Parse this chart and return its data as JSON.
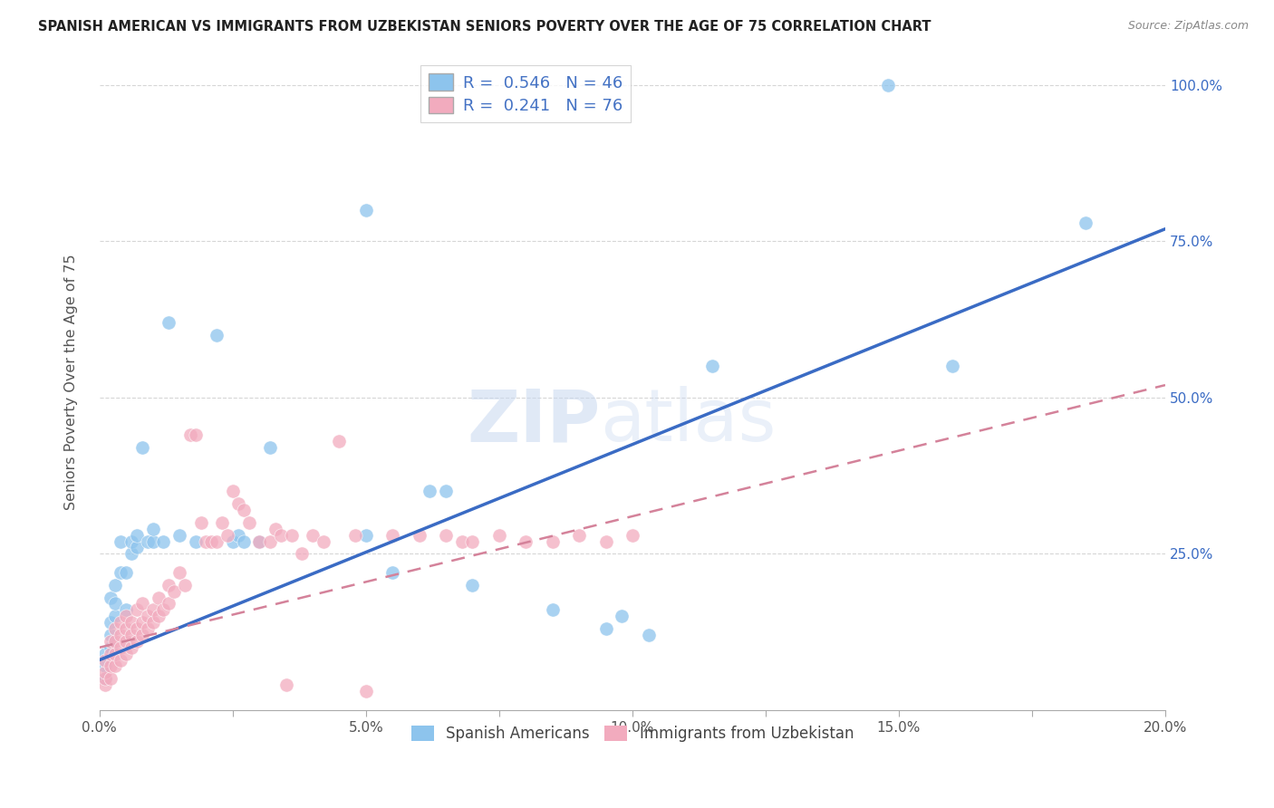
{
  "title": "SPANISH AMERICAN VS IMMIGRANTS FROM UZBEKISTAN SENIORS POVERTY OVER THE AGE OF 75 CORRELATION CHART",
  "source": "Source: ZipAtlas.com",
  "ylabel": "Seniors Poverty Over the Age of 75",
  "xlim": [
    0.0,
    0.2
  ],
  "ylim": [
    0.0,
    1.05
  ],
  "xtick_labels": [
    "0.0%",
    "",
    "5.0%",
    "",
    "10.0%",
    "",
    "15.0%",
    "",
    "20.0%"
  ],
  "xtick_vals": [
    0.0,
    0.025,
    0.05,
    0.075,
    0.1,
    0.125,
    0.15,
    0.175,
    0.2
  ],
  "ytick_labels": [
    "25.0%",
    "50.0%",
    "75.0%",
    "100.0%"
  ],
  "ytick_vals": [
    0.25,
    0.5,
    0.75,
    1.0
  ],
  "watermark_zip": "ZIP",
  "watermark_atlas": "atlas",
  "blue_R": 0.546,
  "blue_N": 46,
  "pink_R": 0.241,
  "pink_N": 76,
  "blue_color": "#8DC4ED",
  "pink_color": "#F2ABBE",
  "blue_line_color": "#3A6BC4",
  "pink_line_color": "#D4829A",
  "legend_text_color": "#4472C4",
  "blue_line_x": [
    0.0,
    0.2
  ],
  "blue_line_y": [
    0.08,
    0.77
  ],
  "pink_line_x": [
    0.0,
    0.2
  ],
  "pink_line_y": [
    0.1,
    0.52
  ],
  "blue_scatter_x": [
    0.001,
    0.001,
    0.001,
    0.002,
    0.002,
    0.002,
    0.002,
    0.003,
    0.003,
    0.003,
    0.004,
    0.004,
    0.005,
    0.005,
    0.006,
    0.006,
    0.007,
    0.007,
    0.008,
    0.009,
    0.01,
    0.01,
    0.012,
    0.013,
    0.015,
    0.018,
    0.022,
    0.025,
    0.026,
    0.027,
    0.03,
    0.032,
    0.05,
    0.055,
    0.065,
    0.07,
    0.085,
    0.095,
    0.098,
    0.103,
    0.115,
    0.148,
    0.16,
    0.185,
    0.05,
    0.062
  ],
  "blue_scatter_y": [
    0.05,
    0.07,
    0.09,
    0.1,
    0.12,
    0.14,
    0.18,
    0.15,
    0.17,
    0.2,
    0.22,
    0.27,
    0.16,
    0.22,
    0.25,
    0.27,
    0.26,
    0.28,
    0.42,
    0.27,
    0.27,
    0.29,
    0.27,
    0.62,
    0.28,
    0.27,
    0.6,
    0.27,
    0.28,
    0.27,
    0.27,
    0.42,
    0.28,
    0.22,
    0.35,
    0.2,
    0.16,
    0.13,
    0.15,
    0.12,
    0.55,
    1.0,
    0.55,
    0.78,
    0.8,
    0.35
  ],
  "pink_scatter_x": [
    0.001,
    0.001,
    0.001,
    0.001,
    0.002,
    0.002,
    0.002,
    0.002,
    0.003,
    0.003,
    0.003,
    0.003,
    0.004,
    0.004,
    0.004,
    0.004,
    0.005,
    0.005,
    0.005,
    0.005,
    0.006,
    0.006,
    0.006,
    0.007,
    0.007,
    0.007,
    0.008,
    0.008,
    0.008,
    0.009,
    0.009,
    0.01,
    0.01,
    0.011,
    0.011,
    0.012,
    0.013,
    0.013,
    0.014,
    0.015,
    0.016,
    0.017,
    0.018,
    0.019,
    0.02,
    0.021,
    0.022,
    0.023,
    0.024,
    0.025,
    0.026,
    0.027,
    0.028,
    0.03,
    0.032,
    0.033,
    0.034,
    0.036,
    0.038,
    0.04,
    0.042,
    0.045,
    0.048,
    0.05,
    0.055,
    0.06,
    0.065,
    0.068,
    0.07,
    0.075,
    0.08,
    0.085,
    0.09,
    0.095,
    0.1,
    0.035
  ],
  "pink_scatter_y": [
    0.04,
    0.05,
    0.06,
    0.08,
    0.05,
    0.07,
    0.09,
    0.11,
    0.07,
    0.09,
    0.11,
    0.13,
    0.08,
    0.1,
    0.12,
    0.14,
    0.09,
    0.11,
    0.13,
    0.15,
    0.1,
    0.12,
    0.14,
    0.11,
    0.13,
    0.16,
    0.12,
    0.14,
    0.17,
    0.13,
    0.15,
    0.14,
    0.16,
    0.15,
    0.18,
    0.16,
    0.17,
    0.2,
    0.19,
    0.22,
    0.2,
    0.44,
    0.44,
    0.3,
    0.27,
    0.27,
    0.27,
    0.3,
    0.28,
    0.35,
    0.33,
    0.32,
    0.3,
    0.27,
    0.27,
    0.29,
    0.28,
    0.28,
    0.25,
    0.28,
    0.27,
    0.43,
    0.28,
    0.03,
    0.28,
    0.28,
    0.28,
    0.27,
    0.27,
    0.28,
    0.27,
    0.27,
    0.28,
    0.27,
    0.28,
    0.04
  ]
}
